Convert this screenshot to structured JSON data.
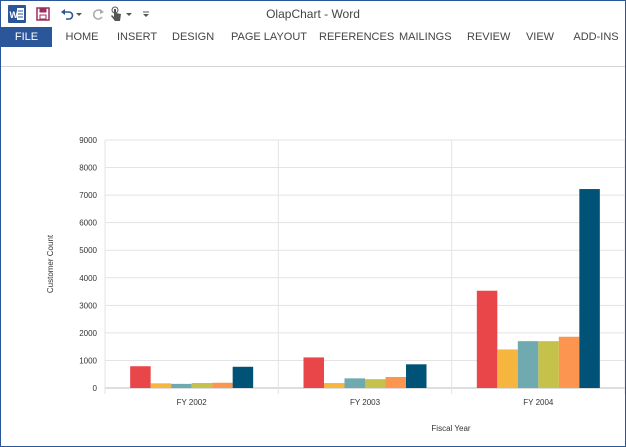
{
  "app": {
    "window_title": "OlapChart - Word",
    "icon_names": {
      "app_logo": "word-logo-icon",
      "save": "save-icon",
      "undo": "undo-icon",
      "redo": "redo-icon",
      "touch": "touch-mode-icon",
      "customize": "customize-toolbar-icon"
    }
  },
  "ribbon": {
    "tabs": [
      "FILE",
      "HOME",
      "INSERT",
      "DESIGN",
      "PAGE LAYOUT",
      "REFERENCES",
      "MAILINGS",
      "REVIEW",
      "VIEW",
      "ADD-INS"
    ],
    "active_tab": "FILE",
    "file_tab_color": "#2b579a"
  },
  "chart_data": {
    "type": "bar",
    "xlabel": "Fiscal Year",
    "ylabel": "Customer Count",
    "ylim": [
      0,
      9000
    ],
    "yticks": [
      0,
      1000,
      2000,
      3000,
      4000,
      5000,
      6000,
      7000,
      8000,
      9000
    ],
    "grid": true,
    "legend": "none",
    "categories": [
      "FY 2002",
      "FY 2003",
      "FY 2004"
    ],
    "series": [
      {
        "color": "#e94649",
        "values": [
          790,
          1110,
          3530
        ]
      },
      {
        "color": "#f6b53f",
        "values": [
          170,
          180,
          1400
        ]
      },
      {
        "color": "#6faab0",
        "values": [
          150,
          350,
          1700
        ]
      },
      {
        "color": "#c4c24a",
        "values": [
          180,
          320,
          1700
        ]
      },
      {
        "color": "#fb954f",
        "values": [
          190,
          400,
          1860
        ]
      },
      {
        "color": "#005277",
        "values": [
          770,
          860,
          7220
        ]
      }
    ]
  }
}
